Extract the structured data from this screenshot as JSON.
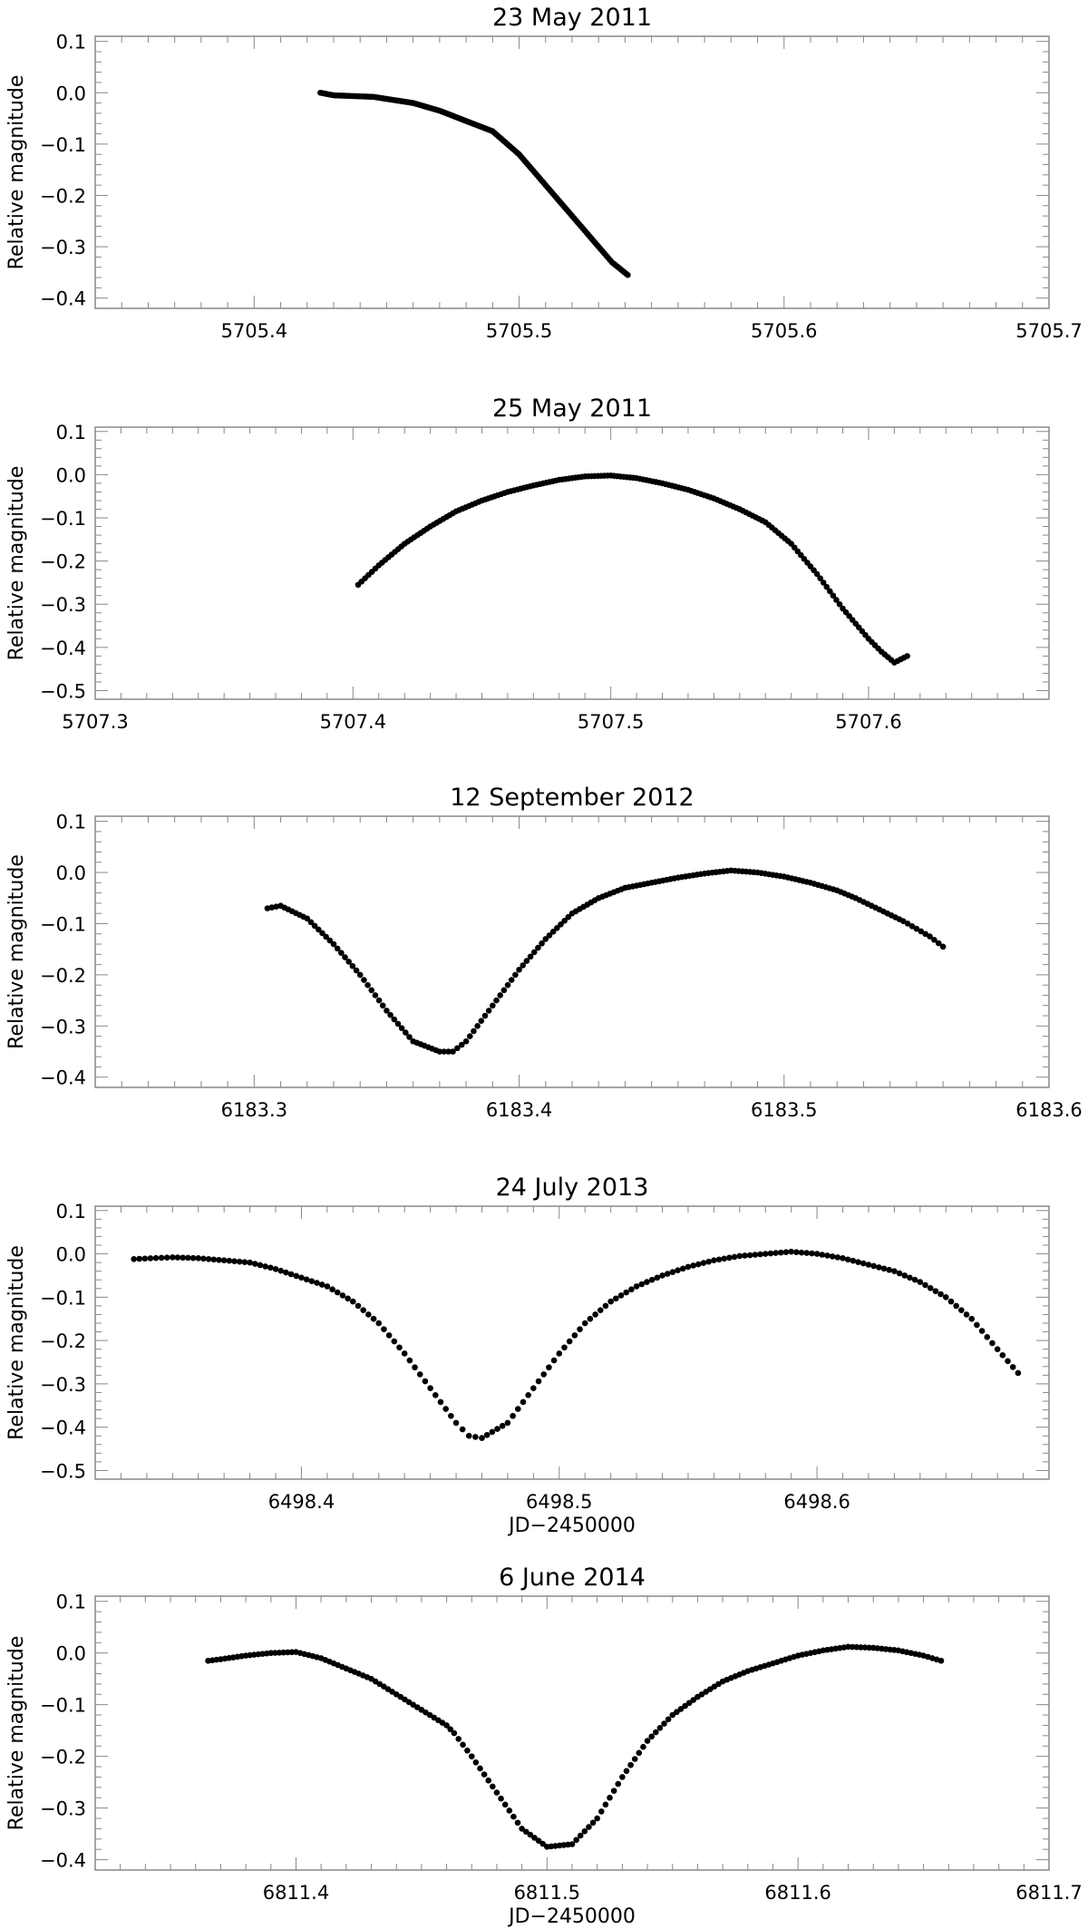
{
  "chart_data": [
    {
      "type": "scatter",
      "title": "23 May 2011",
      "xlabel": "",
      "ylabel": "Relative magnitude",
      "xlim": [
        5705.34,
        5705.7
      ],
      "ylim": [
        -0.42,
        0.11
      ],
      "xticks": [
        5705.4,
        5705.5,
        5705.6,
        5705.7
      ],
      "xtick_labels": [
        "5705.4",
        "5705.5",
        "5705.6",
        "5705.7"
      ],
      "yticks": [
        0.1,
        0.0,
        -0.1,
        -0.2,
        -0.3,
        -0.4
      ],
      "ytick_labels": [
        "0.1",
        "0.0",
        "−0.1",
        "−0.2",
        "−0.3",
        "−0.4"
      ],
      "grid": false,
      "series": [
        {
          "color": "#000000",
          "x": [
            5705.425,
            5705.43,
            5705.445,
            5705.46,
            5705.47,
            5705.48,
            5705.49,
            5705.5,
            5705.51,
            5705.52,
            5705.53,
            5705.535,
            5705.541
          ],
          "y": [
            0.0,
            -0.005,
            -0.008,
            -0.02,
            -0.035,
            -0.055,
            -0.075,
            -0.12,
            -0.18,
            -0.24,
            -0.3,
            -0.33,
            -0.355
          ]
        }
      ]
    },
    {
      "type": "scatter",
      "title": "25 May 2011",
      "xlabel": "",
      "ylabel": "Relative magnitude",
      "xlim": [
        5707.3,
        5707.67
      ],
      "ylim": [
        -0.52,
        0.11
      ],
      "xticks": [
        5707.3,
        5707.4,
        5707.5,
        5707.6
      ],
      "xtick_labels": [
        "5707.3",
        "5707.4",
        "5707.5",
        "5707.6"
      ],
      "yticks": [
        0.1,
        0.0,
        -0.1,
        -0.2,
        -0.3,
        -0.4,
        -0.5
      ],
      "ytick_labels": [
        "0.1",
        "0.0",
        "−0.1",
        "−0.2",
        "−0.3",
        "−0.4",
        "−0.5"
      ],
      "grid": false,
      "series": [
        {
          "color": "#000000",
          "x": [
            5707.402,
            5707.41,
            5707.42,
            5707.43,
            5707.44,
            5707.45,
            5707.46,
            5707.47,
            5707.48,
            5707.49,
            5707.5,
            5707.51,
            5707.52,
            5707.53,
            5707.54,
            5707.55,
            5707.56,
            5707.57,
            5707.58,
            5707.59,
            5707.6,
            5707.605,
            5707.61,
            5707.615
          ],
          "y": [
            -0.255,
            -0.21,
            -0.16,
            -0.12,
            -0.085,
            -0.06,
            -0.04,
            -0.025,
            -0.012,
            -0.004,
            -0.002,
            -0.008,
            -0.02,
            -0.035,
            -0.055,
            -0.08,
            -0.11,
            -0.16,
            -0.23,
            -0.31,
            -0.38,
            -0.41,
            -0.435,
            -0.42
          ]
        }
      ]
    },
    {
      "type": "scatter",
      "title": "12 September 2012",
      "xlabel": "",
      "ylabel": "Relative magnitude",
      "xlim": [
        6183.24,
        6183.6
      ],
      "ylim": [
        -0.42,
        0.11
      ],
      "xticks": [
        6183.3,
        6183.4,
        6183.5,
        6183.6
      ],
      "xtick_labels": [
        "6183.3",
        "6183.4",
        "6183.5",
        "6183.6"
      ],
      "yticks": [
        0.1,
        0.0,
        -0.1,
        -0.2,
        -0.3,
        -0.4
      ],
      "ytick_labels": [
        "0.1",
        "0.0",
        "−0.1",
        "−0.2",
        "−0.3",
        "−0.4"
      ],
      "grid": false,
      "series": [
        {
          "color": "#000000",
          "x": [
            6183.305,
            6183.31,
            6183.32,
            6183.33,
            6183.34,
            6183.35,
            6183.36,
            6183.37,
            6183.375,
            6183.38,
            6183.39,
            6183.4,
            6183.41,
            6183.42,
            6183.43,
            6183.44,
            6183.45,
            6183.46,
            6183.47,
            6183.48,
            6183.49,
            6183.5,
            6183.51,
            6183.52,
            6183.527,
            6183.545,
            6183.55,
            6183.555,
            6183.56
          ],
          "y": [
            -0.07,
            -0.065,
            -0.09,
            -0.14,
            -0.2,
            -0.27,
            -0.33,
            -0.35,
            -0.35,
            -0.33,
            -0.26,
            -0.19,
            -0.13,
            -0.08,
            -0.05,
            -0.03,
            -0.02,
            -0.01,
            -0.002,
            0.004,
            0.0,
            -0.008,
            -0.02,
            -0.035,
            -0.05,
            -0.095,
            -0.11,
            -0.125,
            -0.145
          ]
        }
      ]
    },
    {
      "type": "scatter",
      "title": "24 July 2013",
      "xlabel": "JD−2450000",
      "ylabel": "Relative magnitude",
      "xlim": [
        6498.32,
        6498.69
      ],
      "ylim": [
        -0.52,
        0.11
      ],
      "xticks": [
        6498.4,
        6498.5,
        6498.6
      ],
      "xtick_labels": [
        "6498.4",
        "6498.5",
        "6498.6"
      ],
      "yticks": [
        0.1,
        0.0,
        -0.1,
        -0.2,
        -0.3,
        -0.4,
        -0.5
      ],
      "ytick_labels": [
        "0.1",
        "0.0",
        "−0.1",
        "−0.2",
        "−0.3",
        "−0.4",
        "−0.5"
      ],
      "grid": false,
      "series": [
        {
          "color": "#000000",
          "x": [
            6498.335,
            6498.35,
            6498.36,
            6498.37,
            6498.38,
            6498.39,
            6498.4,
            6498.41,
            6498.42,
            6498.43,
            6498.44,
            6498.45,
            6498.46,
            6498.465,
            6498.47,
            6498.48,
            6498.49,
            6498.5,
            6498.51,
            6498.52,
            6498.53,
            6498.54,
            6498.55,
            6498.56,
            6498.57,
            6498.58,
            6498.59,
            6498.6,
            6498.61,
            6498.62,
            6498.63,
            6498.64,
            6498.65,
            6498.66,
            6498.67,
            6498.678
          ],
          "y": [
            -0.012,
            -0.008,
            -0.01,
            -0.015,
            -0.02,
            -0.035,
            -0.055,
            -0.075,
            -0.11,
            -0.16,
            -0.23,
            -0.31,
            -0.39,
            -0.42,
            -0.425,
            -0.39,
            -0.31,
            -0.23,
            -0.16,
            -0.11,
            -0.075,
            -0.05,
            -0.03,
            -0.015,
            -0.005,
            0.0,
            0.005,
            0.0,
            -0.01,
            -0.025,
            -0.04,
            -0.065,
            -0.1,
            -0.15,
            -0.22,
            -0.275
          ]
        }
      ]
    },
    {
      "type": "scatter",
      "title": "6 June 2014",
      "xlabel": "JD−2450000",
      "ylabel": "Relative magnitude",
      "xlim": [
        6811.32,
        6811.7
      ],
      "ylim": [
        -0.42,
        0.11
      ],
      "xticks": [
        6811.4,
        6811.5,
        6811.6,
        6811.7
      ],
      "xtick_labels": [
        "6811.4",
        "6811.5",
        "6811.6",
        "6811.7"
      ],
      "yticks": [
        0.1,
        0.0,
        -0.1,
        -0.2,
        -0.3,
        -0.4
      ],
      "ytick_labels": [
        "0.1",
        "0.0",
        "−0.1",
        "−0.2",
        "−0.3",
        "−0.4"
      ],
      "grid": false,
      "series": [
        {
          "color": "#000000",
          "x": [
            6811.365,
            6811.37,
            6811.38,
            6811.39,
            6811.4,
            6811.41,
            6811.42,
            6811.43,
            6811.44,
            6811.45,
            6811.46,
            6811.463,
            6811.47,
            6811.48,
            6811.49,
            6811.5,
            6811.51,
            6811.52,
            6811.53,
            6811.54,
            6811.55,
            6811.56,
            6811.57,
            6811.58,
            6811.59,
            6811.6,
            6811.61,
            6811.62,
            6811.63,
            6811.64,
            6811.65,
            6811.657
          ],
          "y": [
            -0.015,
            -0.012,
            -0.005,
            0.0,
            0.002,
            -0.01,
            -0.03,
            -0.05,
            -0.08,
            -0.11,
            -0.14,
            -0.155,
            -0.2,
            -0.27,
            -0.34,
            -0.375,
            -0.37,
            -0.32,
            -0.24,
            -0.17,
            -0.12,
            -0.085,
            -0.055,
            -0.035,
            -0.02,
            -0.005,
            0.005,
            0.012,
            0.01,
            0.005,
            -0.005,
            -0.015
          ]
        }
      ]
    }
  ]
}
